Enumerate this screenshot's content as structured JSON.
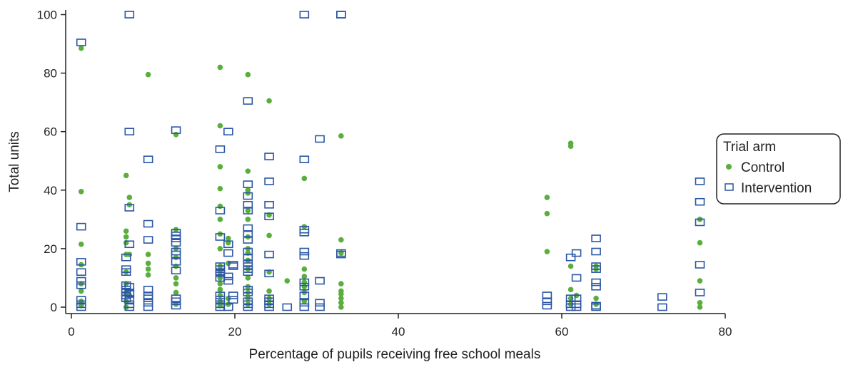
{
  "chart_data": {
    "type": "scatter",
    "title": "",
    "xlabel": "Percentage of pupils receiving free school meals",
    "ylabel": "Total units",
    "xlim": [
      0,
      82
    ],
    "ylim": [
      0,
      103
    ],
    "xticks": [
      0,
      20,
      40,
      60,
      80
    ],
    "yticks": [
      0,
      20,
      40,
      60,
      80,
      100
    ],
    "grid": false,
    "legend": {
      "title": "Trial arm",
      "placement": "right",
      "entries": [
        {
          "name": "Control",
          "marker": "filled-circle",
          "color": "#5aaf3c"
        },
        {
          "name": "Intervention",
          "marker": "open-square",
          "color": "#2a56a5"
        }
      ]
    },
    "series": [
      {
        "name": "Control",
        "color": "#5aaf3c",
        "points": [
          [
            1.2,
            88.5
          ],
          [
            1.2,
            39.5
          ],
          [
            1.2,
            21.5
          ],
          [
            1.2,
            14.5
          ],
          [
            1.2,
            8
          ],
          [
            1.2,
            5.5
          ],
          [
            1.2,
            2
          ],
          [
            1.2,
            0.5
          ],
          [
            6.7,
            45
          ],
          [
            6.7,
            26
          ],
          [
            6.7,
            24
          ],
          [
            6.7,
            22
          ],
          [
            6.7,
            18
          ],
          [
            6.7,
            12
          ],
          [
            6.7,
            8
          ],
          [
            6.7,
            5
          ],
          [
            6.7,
            2
          ],
          [
            6.7,
            0
          ],
          [
            7.1,
            37.5
          ],
          [
            7.1,
            35
          ],
          [
            7.1,
            18
          ],
          [
            7.1,
            4
          ],
          [
            9.4,
            79.5
          ],
          [
            9.4,
            18
          ],
          [
            9.4,
            15
          ],
          [
            9.4,
            13
          ],
          [
            9.4,
            11
          ],
          [
            12.8,
            59
          ],
          [
            12.8,
            26.5
          ],
          [
            12.8,
            20
          ],
          [
            12.8,
            17
          ],
          [
            12.8,
            14
          ],
          [
            12.8,
            10
          ],
          [
            12.8,
            8
          ],
          [
            12.8,
            5
          ],
          [
            12.8,
            1
          ],
          [
            18.2,
            82
          ],
          [
            18.2,
            62
          ],
          [
            18.2,
            48
          ],
          [
            18.2,
            40.5
          ],
          [
            18.2,
            34.5
          ],
          [
            18.2,
            30
          ],
          [
            18.2,
            25
          ],
          [
            18.2,
            20
          ],
          [
            18.2,
            14
          ],
          [
            18.2,
            12
          ],
          [
            18.2,
            10
          ],
          [
            18.2,
            8
          ],
          [
            18.2,
            6
          ],
          [
            18.2,
            4
          ],
          [
            18.2,
            2
          ],
          [
            18.2,
            0.5
          ],
          [
            19.2,
            23.5
          ],
          [
            19.2,
            22
          ],
          [
            19.2,
            15
          ],
          [
            19.2,
            3
          ],
          [
            19.2,
            1
          ],
          [
            21.6,
            79.5
          ],
          [
            21.6,
            46.5
          ],
          [
            21.6,
            40
          ],
          [
            21.6,
            39
          ],
          [
            21.6,
            33
          ],
          [
            21.6,
            30
          ],
          [
            21.6,
            24
          ],
          [
            21.6,
            20
          ],
          [
            21.6,
            18.5
          ],
          [
            21.6,
            16
          ],
          [
            21.6,
            13
          ],
          [
            21.6,
            10
          ],
          [
            21.6,
            7
          ],
          [
            21.6,
            5
          ],
          [
            21.6,
            3
          ],
          [
            21.6,
            1
          ],
          [
            24.2,
            70.5
          ],
          [
            24.2,
            31.5
          ],
          [
            24.2,
            24.5
          ],
          [
            24.2,
            12
          ],
          [
            24.2,
            5.5
          ],
          [
            24.2,
            3
          ],
          [
            24.2,
            1
          ],
          [
            26.4,
            9
          ],
          [
            28.5,
            44
          ],
          [
            28.5,
            27.5
          ],
          [
            28.5,
            13
          ],
          [
            28.5,
            10.5
          ],
          [
            28.5,
            8.5
          ],
          [
            28.5,
            7
          ],
          [
            28.5,
            5
          ],
          [
            28.5,
            2
          ],
          [
            33,
            58.5
          ],
          [
            33,
            23
          ],
          [
            33,
            18.5
          ],
          [
            33,
            8
          ],
          [
            33,
            5.5
          ],
          [
            33,
            4.5
          ],
          [
            33,
            3
          ],
          [
            33,
            1.5
          ],
          [
            33,
            0
          ],
          [
            58.2,
            37.5
          ],
          [
            58.2,
            32
          ],
          [
            58.2,
            19
          ],
          [
            61.1,
            56
          ],
          [
            61.1,
            55
          ],
          [
            61.1,
            14
          ],
          [
            61.1,
            6
          ],
          [
            61.1,
            3
          ],
          [
            61.1,
            1
          ],
          [
            61.8,
            4
          ],
          [
            64.2,
            14
          ],
          [
            64.2,
            13
          ],
          [
            64.2,
            3
          ],
          [
            64.2,
            1
          ],
          [
            76.9,
            30
          ],
          [
            76.9,
            22
          ],
          [
            76.9,
            9
          ],
          [
            76.9,
            1.5
          ],
          [
            76.9,
            0
          ]
        ]
      },
      {
        "name": "Intervention",
        "color": "#2a56a5",
        "points": [
          [
            1.2,
            90.5
          ],
          [
            1.2,
            27.5
          ],
          [
            1.2,
            15.5
          ],
          [
            1.2,
            12
          ],
          [
            1.2,
            9
          ],
          [
            1.2,
            7.5
          ],
          [
            1.2,
            2.5
          ],
          [
            1.2,
            1
          ],
          [
            1.2,
            0
          ],
          [
            6.7,
            17
          ],
          [
            6.7,
            13
          ],
          [
            6.7,
            12
          ],
          [
            6.7,
            7.5
          ],
          [
            6.7,
            6
          ],
          [
            6.7,
            5
          ],
          [
            6.7,
            4
          ],
          [
            6.7,
            3
          ],
          [
            7.1,
            100
          ],
          [
            7.1,
            60
          ],
          [
            7.1,
            34
          ],
          [
            7.1,
            21.5
          ],
          [
            7.1,
            7
          ],
          [
            7.1,
            5
          ],
          [
            7.1,
            4.5
          ],
          [
            7.1,
            2.5
          ],
          [
            7.1,
            1
          ],
          [
            7.1,
            0
          ],
          [
            9.4,
            50.5
          ],
          [
            9.4,
            28.5
          ],
          [
            9.4,
            23
          ],
          [
            9.4,
            6
          ],
          [
            9.4,
            4
          ],
          [
            9.4,
            3
          ],
          [
            9.4,
            1.5
          ],
          [
            9.4,
            0
          ],
          [
            12.8,
            60.5
          ],
          [
            12.8,
            25.5
          ],
          [
            12.8,
            24.5
          ],
          [
            12.8,
            23.5
          ],
          [
            12.8,
            22
          ],
          [
            12.8,
            19
          ],
          [
            12.8,
            18
          ],
          [
            12.8,
            15.5
          ],
          [
            12.8,
            12.5
          ],
          [
            12.8,
            3
          ],
          [
            12.8,
            2
          ],
          [
            12.8,
            0.5
          ],
          [
            18.2,
            54
          ],
          [
            18.2,
            33
          ],
          [
            18.2,
            24
          ],
          [
            18.2,
            14
          ],
          [
            18.2,
            13
          ],
          [
            18.2,
            12
          ],
          [
            18.2,
            11.5
          ],
          [
            18.2,
            10
          ],
          [
            18.2,
            4
          ],
          [
            18.2,
            2.5
          ],
          [
            18.2,
            1
          ],
          [
            18.2,
            0
          ],
          [
            19.2,
            60
          ],
          [
            19.2,
            21.5
          ],
          [
            19.2,
            18.5
          ],
          [
            19.2,
            10.5
          ],
          [
            19.2,
            9
          ],
          [
            19.2,
            0
          ],
          [
            19.8,
            14.5
          ],
          [
            19.8,
            14
          ],
          [
            19.8,
            4
          ],
          [
            19.8,
            2.5
          ],
          [
            21.6,
            70.5
          ],
          [
            21.6,
            42
          ],
          [
            21.6,
            38
          ],
          [
            21.6,
            35
          ],
          [
            21.6,
            33
          ],
          [
            21.6,
            27
          ],
          [
            21.6,
            25
          ],
          [
            21.6,
            23
          ],
          [
            21.6,
            19
          ],
          [
            21.6,
            17
          ],
          [
            21.6,
            15
          ],
          [
            21.6,
            14
          ],
          [
            21.6,
            13
          ],
          [
            21.6,
            12
          ],
          [
            21.6,
            6
          ],
          [
            21.6,
            5
          ],
          [
            21.6,
            2
          ],
          [
            21.6,
            1
          ],
          [
            21.6,
            0
          ],
          [
            24.2,
            51.5
          ],
          [
            24.2,
            43
          ],
          [
            24.2,
            35
          ],
          [
            24.2,
            31
          ],
          [
            24.2,
            18
          ],
          [
            24.2,
            11.5
          ],
          [
            24.2,
            3
          ],
          [
            24.2,
            2
          ],
          [
            24.2,
            1
          ],
          [
            24.2,
            0
          ],
          [
            26.4,
            0
          ],
          [
            28.5,
            100
          ],
          [
            28.5,
            50.5
          ],
          [
            28.5,
            26.5
          ],
          [
            28.5,
            25.5
          ],
          [
            28.5,
            19
          ],
          [
            28.5,
            17.5
          ],
          [
            28.5,
            8.5
          ],
          [
            28.5,
            7
          ],
          [
            28.5,
            4
          ],
          [
            28.5,
            1.5
          ],
          [
            28.5,
            0
          ],
          [
            30.4,
            57.5
          ],
          [
            30.4,
            9
          ],
          [
            30.4,
            1.5
          ],
          [
            30.4,
            0
          ],
          [
            33,
            100
          ],
          [
            33,
            100
          ],
          [
            33,
            18
          ],
          [
            33,
            18.5
          ],
          [
            58.2,
            4
          ],
          [
            58.2,
            2
          ],
          [
            58.2,
            0.5
          ],
          [
            61.1,
            17
          ],
          [
            61.1,
            3
          ],
          [
            61.1,
            1
          ],
          [
            61.1,
            0
          ],
          [
            61.8,
            18.5
          ],
          [
            61.8,
            10
          ],
          [
            61.8,
            3
          ],
          [
            61.8,
            1
          ],
          [
            61.8,
            0
          ],
          [
            64.2,
            23.5
          ],
          [
            64.2,
            19
          ],
          [
            64.2,
            14
          ],
          [
            64.2,
            13
          ],
          [
            64.2,
            8.5
          ],
          [
            64.2,
            7
          ],
          [
            64.2,
            0.5
          ],
          [
            64.2,
            0
          ],
          [
            72.3,
            3.5
          ],
          [
            72.3,
            0
          ],
          [
            76.9,
            43
          ],
          [
            76.9,
            36
          ],
          [
            76.9,
            29
          ],
          [
            76.9,
            14.5
          ],
          [
            76.9,
            5
          ]
        ]
      }
    ]
  }
}
